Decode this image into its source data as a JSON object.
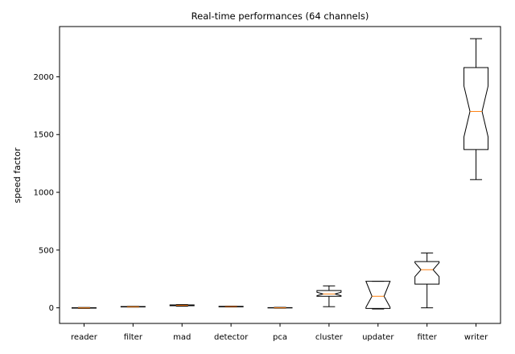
{
  "chart_data": {
    "type": "box",
    "title": "Real-time performances (64 channels)",
    "xlabel": "",
    "ylabel": "speed factor",
    "ylim": [
      -135,
      2435
    ],
    "yticks": [
      0,
      500,
      1000,
      1500,
      2000
    ],
    "grid": false,
    "notched": true,
    "box_color": "#000000",
    "median_color": "#ff7f0e",
    "categories": [
      "reader",
      "filter",
      "mad",
      "detector",
      "pca",
      "cluster",
      "updater",
      "fitter",
      "writer"
    ],
    "boxes": [
      {
        "label": "reader",
        "whislo": -5,
        "q1": -3,
        "med": -1,
        "q3": 1,
        "whishi": 3,
        "notch": [
          -2,
          0
        ]
      },
      {
        "label": "filter",
        "whislo": 6,
        "q1": 8,
        "med": 9,
        "q3": 11,
        "whishi": 13,
        "notch": [
          8.5,
          9.5
        ]
      },
      {
        "label": "mad",
        "whislo": 14,
        "q1": 18,
        "med": 21,
        "q3": 25,
        "whishi": 28,
        "notch": [
          19.5,
          22.5
        ]
      },
      {
        "label": "detector",
        "whislo": 7,
        "q1": 9,
        "med": 11,
        "q3": 13,
        "whishi": 15,
        "notch": [
          10,
          12
        ]
      },
      {
        "label": "pca",
        "whislo": -3,
        "q1": -1,
        "med": 0,
        "q3": 2,
        "whishi": 4,
        "notch": [
          -0.5,
          0.5
        ]
      },
      {
        "label": "cluster",
        "whislo": 10,
        "q1": 100,
        "med": 120,
        "q3": 150,
        "whishi": 190,
        "notch": [
          105,
          135
        ]
      },
      {
        "label": "updater",
        "whislo": -10,
        "q1": -5,
        "med": 100,
        "q3": 230,
        "whishi": 230,
        "notch": [
          5,
          230
        ]
      },
      {
        "label": "fitter",
        "whislo": 0,
        "q1": 205,
        "med": 330,
        "q3": 400,
        "whishi": 475,
        "notch": [
          270,
          390
        ]
      },
      {
        "label": "writer",
        "whislo": 1110,
        "q1": 1370,
        "med": 1700,
        "q3": 2080,
        "whishi": 2330,
        "notch": [
          1480,
          1920
        ]
      }
    ]
  }
}
